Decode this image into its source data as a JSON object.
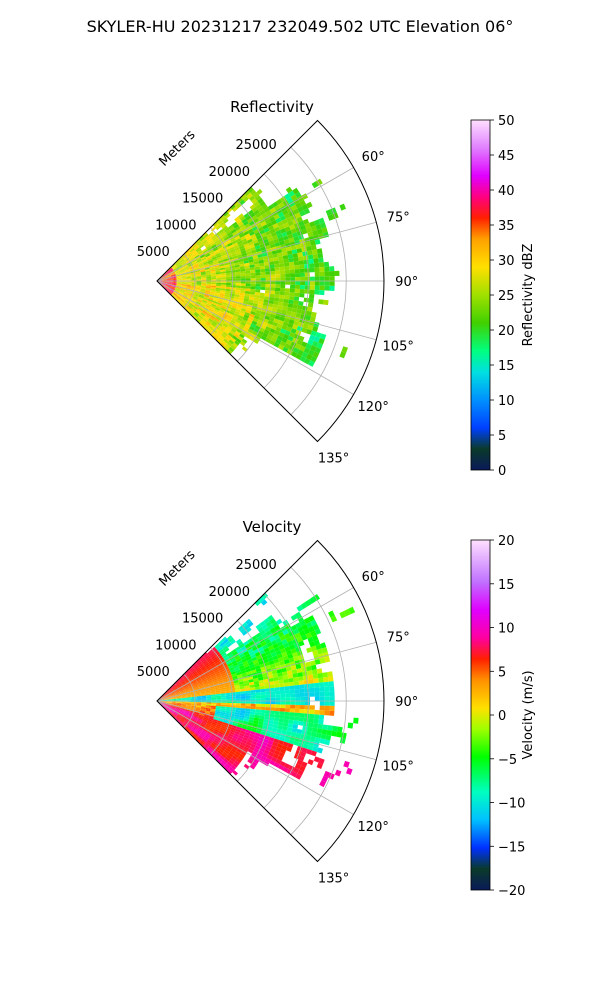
{
  "figure": {
    "title": "SKYLER-HU  20231217  232049.502 UTC Elevation 06°"
  },
  "chart_data": [
    {
      "type": "heatmap",
      "projection": "polar-sector",
      "title": "Reflectivity",
      "radial_label": "Meters",
      "radial_ticks": [
        "5000",
        "10000",
        "15000",
        "20000",
        "25000"
      ],
      "radial_range": [
        0,
        30000
      ],
      "angle_ticks": [
        "60°",
        "75°",
        "90°",
        "105°",
        "120°",
        "135°"
      ],
      "angle_range_deg": [
        45,
        135
      ],
      "grid": true,
      "colorbar": {
        "label": "Reflectivity dBZ",
        "range": [
          0,
          50
        ],
        "ticks": [
          "0",
          "5",
          "10",
          "15",
          "20",
          "25",
          "30",
          "35",
          "40",
          "45",
          "50"
        ],
        "colormap": "pyart_HomeyerRainbow"
      },
      "field_summary": "Sector of returns mostly 15-30 dBZ, highest near radar (~35-40 dBZ)"
    },
    {
      "type": "heatmap",
      "projection": "polar-sector",
      "title": "Velocity",
      "radial_label": "Meters",
      "radial_ticks": [
        "5000",
        "10000",
        "15000",
        "20000",
        "25000"
      ],
      "radial_range": [
        0,
        30000
      ],
      "angle_ticks": [
        "60°",
        "75°",
        "90°",
        "105°",
        "120°",
        "135°"
      ],
      "angle_range_deg": [
        45,
        135
      ],
      "grid": true,
      "colorbar": {
        "label": "Velocity (m/s)",
        "range": [
          -20,
          20
        ],
        "ticks": [
          "−20",
          "−15",
          "−10",
          "−5",
          "0",
          "5",
          "10",
          "15",
          "20"
        ],
        "colormap": "pyart_BuDRd18"
      },
      "field_summary": "Positive (10-15 m/s) velocities on the south side, negative (-5 to -15 m/s) toward the east"
    }
  ]
}
